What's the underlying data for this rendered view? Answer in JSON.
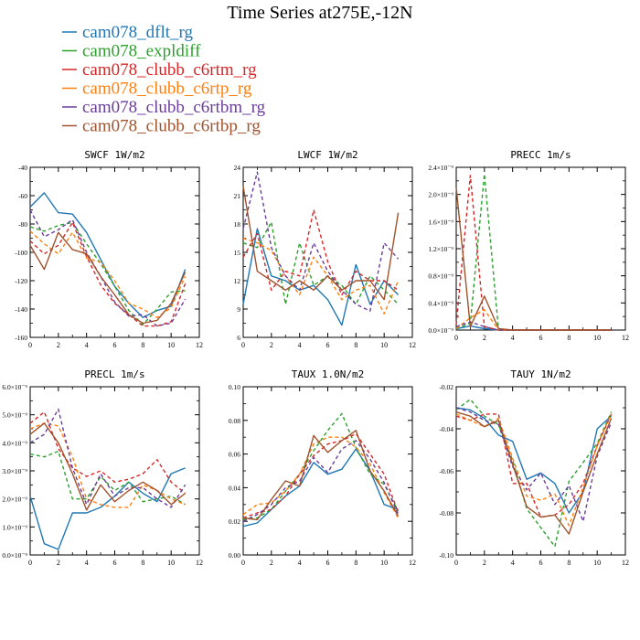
{
  "page_title": "Time Series at275E,-12N",
  "chart_data": [
    {
      "panel": "swcf",
      "type": "line",
      "title": "SWCF   1W/m2",
      "ylim": [
        -160,
        -40
      ],
      "yticks": [
        -160,
        -140,
        -120,
        -100,
        -80,
        -60,
        -40
      ],
      "ytick_labels": [
        "-160",
        "-140",
        "-120",
        "-100",
        "-80",
        "-60",
        "-40"
      ],
      "xlim": [
        0,
        12
      ],
      "xticks": [
        0,
        2,
        4,
        6,
        8,
        10,
        12
      ],
      "x": [
        0,
        1,
        2,
        3,
        4,
        5,
        6,
        7,
        8,
        9,
        10,
        11
      ],
      "series": [
        {
          "name": "cam078_dflt_rg",
          "values": [
            -68,
            -58,
            -72,
            -73,
            -86,
            -105,
            -124,
            -136,
            -146,
            -141,
            -138,
            -112
          ]
        },
        {
          "name": "cam078_expldiff",
          "values": [
            -82,
            -85,
            -81,
            -79,
            -94,
            -108,
            -124,
            -141,
            -151,
            -140,
            -128,
            -127
          ]
        },
        {
          "name": "cam078_clubb_c6rtm_rg",
          "values": [
            -92,
            -101,
            -95,
            -79,
            -103,
            -123,
            -136,
            -144,
            -152,
            -152,
            -149,
            -122
          ]
        },
        {
          "name": "cam078_clubb_c6rtp_rg",
          "values": [
            -85,
            -94,
            -101,
            -86,
            -104,
            -107,
            -120,
            -136,
            -140,
            -146,
            -139,
            -117
          ]
        },
        {
          "name": "cam078_clubb_c6rtbm_rg",
          "values": [
            -70,
            -89,
            -84,
            -77,
            -100,
            -117,
            -135,
            -145,
            -144,
            -152,
            -150,
            -133
          ]
        },
        {
          "name": "cam078_clubb_c6rtbp_rg",
          "values": [
            -95,
            -112,
            -86,
            -98,
            -101,
            -117,
            -130,
            -144,
            -150,
            -148,
            -136,
            -114
          ]
        }
      ]
    },
    {
      "panel": "lwcf",
      "type": "line",
      "title": "LWCF   1W/m2",
      "ylim": [
        6,
        24
      ],
      "yticks": [
        6,
        9,
        12,
        15,
        18,
        21,
        24
      ],
      "ytick_labels": [
        "6",
        "9",
        "12",
        "15",
        "18",
        "21",
        "24"
      ],
      "xlim": [
        0,
        12
      ],
      "xticks": [
        0,
        2,
        4,
        6,
        8,
        10,
        12
      ],
      "x": [
        0,
        1,
        2,
        3,
        4,
        5,
        6,
        7,
        8,
        9,
        10,
        11
      ],
      "series": [
        {
          "name": "cam078_dflt_rg",
          "values": [
            9.5,
            17.5,
            12.5,
            12,
            11,
            11.5,
            10,
            7.3,
            13.7,
            9.5,
            12,
            10.5
          ]
        },
        {
          "name": "cam078_expldiff",
          "values": [
            16,
            15.5,
            18.2,
            9.5,
            16,
            11.5,
            12.5,
            11.5,
            9.5,
            12.5,
            11,
            9.5
          ]
        },
        {
          "name": "cam078_clubb_c6rtm_rg",
          "values": [
            14.5,
            17,
            11,
            13,
            12.5,
            19.5,
            14,
            10.5,
            13,
            12,
            12,
            11
          ]
        },
        {
          "name": "cam078_clubb_c6rtp_rg",
          "values": [
            16.5,
            16,
            15.2,
            12.5,
            10.5,
            14.5,
            12.5,
            10,
            11,
            11.5,
            8.5,
            12
          ]
        },
        {
          "name": "cam078_clubb_c6rtbm_rg",
          "values": [
            17.5,
            23.5,
            15.5,
            12.5,
            11,
            16,
            13,
            11,
            9.5,
            8.8,
            16,
            14.3
          ]
        },
        {
          "name": "cam078_clubb_c6rtbp_rg",
          "values": [
            22,
            13,
            12,
            11,
            12,
            11,
            12.5,
            11,
            12,
            12,
            10,
            19.2
          ]
        }
      ]
    },
    {
      "panel": "precc",
      "type": "line",
      "title": "PRECC   1m/s",
      "ylim": [
        0,
        2.4
      ],
      "yticks": [
        0,
        0.4,
        0.8,
        1.2,
        1.6,
        2.0,
        2.4
      ],
      "ytick_labels": [
        "0.0×10⁻⁹",
        "0.4×10⁻⁹",
        "0.8×10⁻⁹",
        "1.2×10⁻⁹",
        "1.6×10⁻⁹",
        "2.0×10⁻⁹",
        "2.4×10⁻⁹"
      ],
      "xlim": [
        0,
        12
      ],
      "xticks": [
        0,
        2,
        4,
        6,
        8,
        10,
        12
      ],
      "x": [
        0,
        1,
        2,
        3,
        4,
        5,
        6,
        7,
        8,
        9,
        10,
        11
      ],
      "series": [
        {
          "name": "cam078_dflt_rg",
          "values": [
            0.02,
            0.06,
            0.02,
            0,
            0,
            0,
            0,
            0,
            0,
            0,
            0,
            0
          ]
        },
        {
          "name": "cam078_expldiff",
          "values": [
            0.02,
            0.1,
            2.3,
            0,
            0,
            0,
            0,
            0,
            0,
            0,
            0,
            0
          ]
        },
        {
          "name": "cam078_clubb_c6rtm_rg",
          "values": [
            0.08,
            2.28,
            0.05,
            0,
            0,
            0,
            0,
            0,
            0,
            0,
            0,
            0
          ]
        },
        {
          "name": "cam078_clubb_c6rtp_rg",
          "values": [
            0.02,
            0.18,
            0.3,
            0,
            0,
            0,
            0,
            0,
            0,
            0,
            0,
            0
          ]
        },
        {
          "name": "cam078_clubb_c6rtbm_rg",
          "values": [
            0.05,
            0.12,
            0.05,
            0,
            0,
            0,
            0,
            0,
            0,
            0,
            0,
            0
          ]
        },
        {
          "name": "cam078_clubb_c6rtbp_rg",
          "values": [
            2.1,
            0.05,
            0.5,
            0.02,
            0,
            0,
            0,
            0,
            0,
            0,
            0,
            0
          ]
        }
      ]
    },
    {
      "panel": "precl",
      "type": "line",
      "title": "PRECL   1m/s",
      "ylim": [
        0,
        6
      ],
      "yticks": [
        0,
        1,
        2,
        3,
        4,
        5,
        6
      ],
      "ytick_labels": [
        "0.0×10⁻⁹",
        "1.0×10⁻⁹",
        "2.0×10⁻⁹",
        "3.0×10⁻⁹",
        "4.0×10⁻⁹",
        "5.0×10⁻⁹",
        "6.0×10⁻⁹"
      ],
      "xlim": [
        0,
        12
      ],
      "xticks": [
        0,
        2,
        4,
        6,
        8,
        10,
        12
      ],
      "x": [
        0,
        1,
        2,
        3,
        4,
        5,
        6,
        7,
        8,
        9,
        10,
        11
      ],
      "series": [
        {
          "name": "cam078_dflt_rg",
          "values": [
            2.1,
            0.4,
            0.2,
            1.5,
            1.5,
            1.7,
            2.1,
            2.6,
            2.2,
            1.9,
            2.9,
            3.1
          ]
        },
        {
          "name": "cam078_expldiff",
          "values": [
            3.6,
            3.5,
            3.7,
            2.0,
            2.0,
            2.8,
            2.3,
            2.6,
            1.9,
            2.0,
            2.1,
            1.8
          ]
        },
        {
          "name": "cam078_clubb_c6rtm_rg",
          "values": [
            4.7,
            5.1,
            3.8,
            3.1,
            2.8,
            3.0,
            2.6,
            2.7,
            2.9,
            3.4,
            2.6,
            2.2
          ]
        },
        {
          "name": "cam078_clubb_c6rtp_rg",
          "values": [
            4.5,
            4.7,
            4.6,
            3.5,
            2.0,
            1.8,
            1.7,
            1.7,
            2.5,
            2.3,
            2.0,
            1.8
          ]
        },
        {
          "name": "cam078_clubb_c6rtbm_rg",
          "values": [
            4.0,
            4.3,
            5.2,
            3.1,
            1.8,
            2.9,
            2.1,
            2.4,
            2.4,
            2.0,
            1.7,
            2.5
          ]
        },
        {
          "name": "cam078_clubb_c6rtbp_rg",
          "values": [
            4.3,
            4.7,
            4.0,
            2.9,
            1.6,
            2.5,
            1.9,
            2.3,
            2.6,
            2.3,
            1.8,
            2.2
          ]
        }
      ]
    },
    {
      "panel": "taux",
      "type": "line",
      "title": "TAUX   1.0N/m2",
      "ylim": [
        0,
        0.1
      ],
      "yticks": [
        0,
        0.02,
        0.04,
        0.06,
        0.08,
        0.1
      ],
      "ytick_labels": [
        "0.00",
        "0.02",
        "0.04",
        "0.06",
        "0.08",
        "0.10"
      ],
      "xlim": [
        0,
        12
      ],
      "xticks": [
        0,
        2,
        4,
        6,
        8,
        10,
        12
      ],
      "x": [
        0,
        1,
        2,
        3,
        4,
        5,
        6,
        7,
        8,
        9,
        10,
        11
      ],
      "series": [
        {
          "name": "cam078_dflt_rg",
          "values": [
            0.017,
            0.019,
            0.027,
            0.035,
            0.041,
            0.055,
            0.048,
            0.051,
            0.063,
            0.05,
            0.03,
            0.027
          ]
        },
        {
          "name": "cam078_expldiff",
          "values": [
            0.021,
            0.022,
            0.027,
            0.038,
            0.048,
            0.062,
            0.074,
            0.084,
            0.064,
            0.048,
            0.042,
            0.026
          ]
        },
        {
          "name": "cam078_clubb_c6rtm_rg",
          "values": [
            0.022,
            0.025,
            0.027,
            0.035,
            0.048,
            0.059,
            0.066,
            0.068,
            0.072,
            0.06,
            0.048,
            0.025
          ]
        },
        {
          "name": "cam078_clubb_c6rtp_rg",
          "values": [
            0.024,
            0.03,
            0.031,
            0.038,
            0.048,
            0.066,
            0.07,
            0.07,
            0.064,
            0.054,
            0.037,
            0.022
          ]
        },
        {
          "name": "cam078_clubb_c6rtbm_rg",
          "values": [
            0.02,
            0.024,
            0.03,
            0.04,
            0.044,
            0.058,
            0.049,
            0.063,
            0.068,
            0.057,
            0.043,
            0.024
          ]
        },
        {
          "name": "cam078_clubb_c6rtbp_rg",
          "values": [
            0.022,
            0.021,
            0.033,
            0.044,
            0.041,
            0.071,
            0.061,
            0.068,
            0.074,
            0.05,
            0.038,
            0.023
          ]
        }
      ]
    },
    {
      "panel": "tauy",
      "type": "line",
      "title": "TAUY   1N/m2",
      "ylim": [
        -0.1,
        -0.02
      ],
      "yticks": [
        -0.1,
        -0.08,
        -0.06,
        -0.04,
        -0.02
      ],
      "ytick_labels": [
        "-0.10",
        "-0.08",
        "-0.06",
        "-0.04",
        "-0.02"
      ],
      "xlim": [
        0,
        12
      ],
      "xticks": [
        0,
        2,
        4,
        6,
        8,
        10,
        12
      ],
      "x": [
        0,
        1,
        2,
        3,
        4,
        5,
        6,
        7,
        8,
        9,
        10,
        11
      ],
      "series": [
        {
          "name": "cam078_dflt_rg",
          "values": [
            -0.03,
            -0.031,
            -0.035,
            -0.043,
            -0.046,
            -0.064,
            -0.061,
            -0.066,
            -0.08,
            -0.07,
            -0.04,
            -0.034
          ]
        },
        {
          "name": "cam078_expldiff",
          "values": [
            -0.031,
            -0.026,
            -0.034,
            -0.038,
            -0.055,
            -0.078,
            -0.087,
            -0.096,
            -0.065,
            -0.056,
            -0.047,
            -0.032
          ]
        },
        {
          "name": "cam078_clubb_c6rtm_rg",
          "values": [
            -0.034,
            -0.036,
            -0.033,
            -0.033,
            -0.066,
            -0.066,
            -0.082,
            -0.081,
            -0.076,
            -0.066,
            -0.048,
            -0.033
          ]
        },
        {
          "name": "cam078_clubb_c6rtp_rg",
          "values": [
            -0.033,
            -0.036,
            -0.039,
            -0.035,
            -0.054,
            -0.072,
            -0.074,
            -0.071,
            -0.086,
            -0.068,
            -0.048,
            -0.033
          ]
        },
        {
          "name": "cam078_clubb_c6rtbm_rg",
          "values": [
            -0.03,
            -0.032,
            -0.036,
            -0.038,
            -0.058,
            -0.069,
            -0.061,
            -0.076,
            -0.067,
            -0.084,
            -0.053,
            -0.037
          ]
        },
        {
          "name": "cam078_clubb_c6rtbp_rg",
          "values": [
            -0.032,
            -0.034,
            -0.039,
            -0.036,
            -0.057,
            -0.077,
            -0.082,
            -0.081,
            -0.09,
            -0.07,
            -0.052,
            -0.035
          ]
        }
      ]
    }
  ],
  "legend": [
    {
      "label": "cam078_dflt_rg",
      "color": "#1f77b4",
      "dash": "solid"
    },
    {
      "label": "cam078_expldiff",
      "color": "#2ca02c",
      "dash": "dash"
    },
    {
      "label": "cam078_clubb_c6rtm_rg",
      "color": "#d62728",
      "dash": "dash"
    },
    {
      "label": "cam078_clubb_c6rtp_rg",
      "color": "#ff7f0e",
      "dash": "dash"
    },
    {
      "label": "cam078_clubb_c6rtbm_rg",
      "color": "#6a3d9a",
      "dash": "dash"
    },
    {
      "label": "cam078_clubb_c6rtbp_rg",
      "color": "#a0522d",
      "dash": "solid"
    }
  ]
}
